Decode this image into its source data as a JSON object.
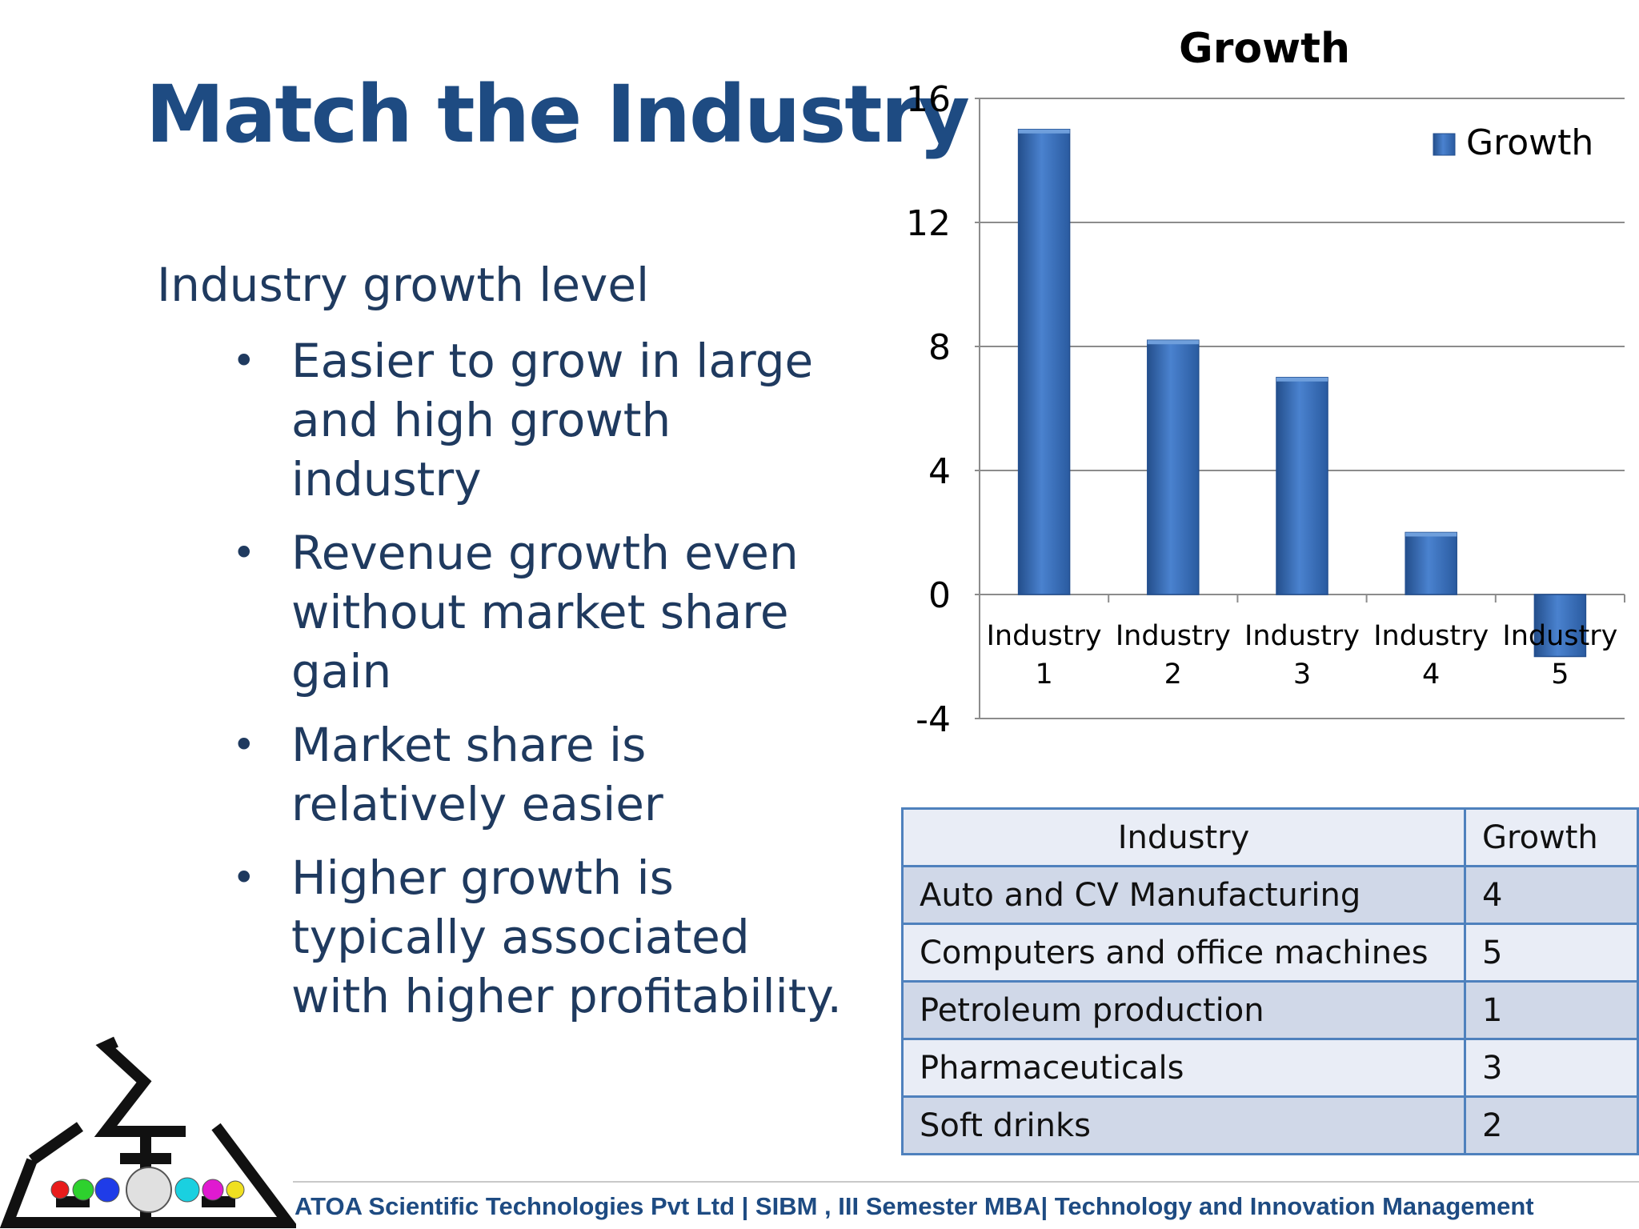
{
  "slide": {
    "title": "Match the Industry",
    "subtitle": "Industry growth level",
    "bullets": [
      "Easier to grow in large and high growth industry",
      "Revenue growth even without market share gain",
      "Market share is relatively easier",
      "Higher growth is typically associated with higher profitability."
    ]
  },
  "chart_data": {
    "type": "bar",
    "title": "Growth",
    "categories": [
      [
        "Industry",
        "1"
      ],
      [
        "Industry",
        "2"
      ],
      [
        "Industry",
        "3"
      ],
      [
        "Industry",
        "4"
      ],
      [
        "Industry",
        "5"
      ]
    ],
    "series": [
      {
        "name": "Growth",
        "values": [
          15,
          8.2,
          7,
          2,
          -2
        ]
      }
    ],
    "ylim": [
      -4,
      16
    ],
    "yticks": [
      "16",
      "12",
      "8",
      "4",
      "0",
      "-4"
    ],
    "ytick_values": [
      16,
      12,
      8,
      4,
      0,
      -4
    ],
    "legend_position": "top-right",
    "grid": true,
    "colors": {
      "bar": "#3a6fb8",
      "bar_dark": "#234f8f",
      "bar_light": "#6f9fdc",
      "grid": "#8c8c8c"
    }
  },
  "table": {
    "headers": [
      "Industry",
      "Growth"
    ],
    "rows": [
      [
        "Auto and CV Manufacturing",
        "4"
      ],
      [
        "Computers and office machines",
        "5"
      ],
      [
        "Petroleum production",
        "1"
      ],
      [
        "Pharmaceuticals",
        "3"
      ],
      [
        "Soft drinks",
        "2"
      ]
    ]
  },
  "footer": {
    "text": "ATOA Scientific Technologies Pvt Ltd  |  SIBM , III Semester MBA|  Technology and Innovation Management"
  },
  "logo": {
    "name": "atoa-logo",
    "dot_colors": [
      "#e81b1b",
      "#2ed12e",
      "#1f3ce8",
      "#e0e0e0",
      "#1ad0e0",
      "#e01ad0",
      "#f0e020"
    ]
  }
}
